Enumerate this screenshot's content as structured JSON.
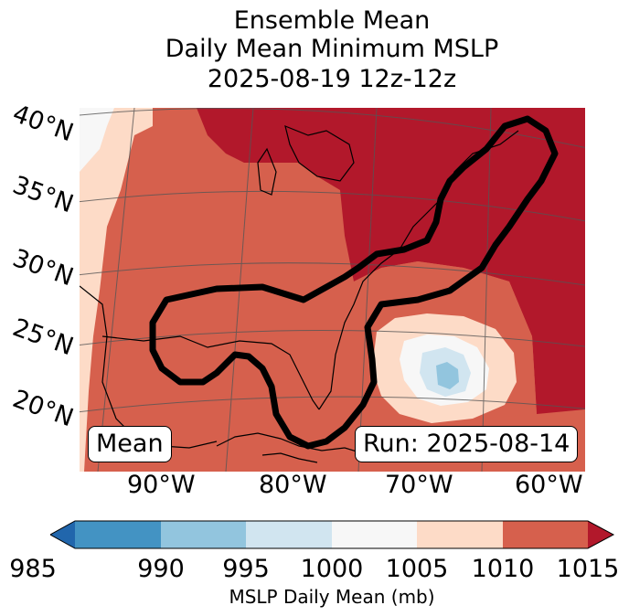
{
  "title": {
    "line1": "Ensemble Mean",
    "line2": "Daily Mean Minimum MSLP",
    "line3": "2025-08-19 12z-12z"
  },
  "lat_labels": [
    "40°N",
    "35°N",
    "30°N",
    "25°N",
    "20°N"
  ],
  "lon_labels": [
    "90°W",
    "80°W",
    "70°W",
    "60°W"
  ],
  "map_labels": {
    "mean": "Mean",
    "run": "Run: 2025-08-14"
  },
  "colorbar": {
    "ticks": [
      "985",
      "990",
      "995",
      "1000",
      "1005",
      "1010",
      "1015"
    ],
    "title": "MSLP Daily Mean (mb)",
    "colors": {
      "lt985": "#2166ac",
      "c985_990": "#4393c3",
      "c990_995": "#92c5de",
      "c995_1000": "#d1e5f0",
      "c1000_1005": "#f7f7f7",
      "c1005_1010": "#fddbc7",
      "c1010_1015": "#d6604d",
      "gt1015": "#b2182b"
    }
  }
}
